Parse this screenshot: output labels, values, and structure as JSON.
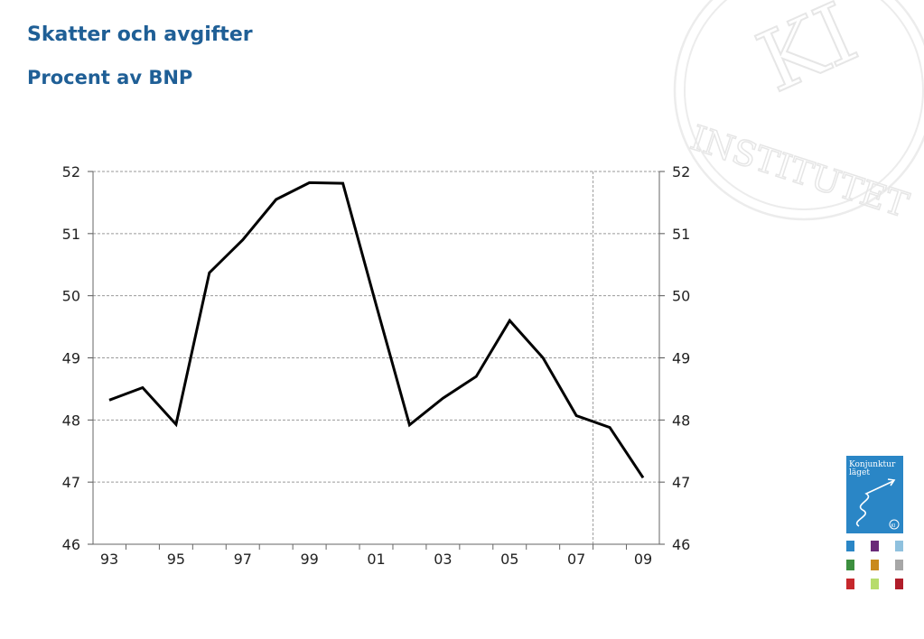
{
  "page": {
    "title": "Skatter och avgifter",
    "subtitle": "Procent av BNP"
  },
  "seal": {
    "icon": "ki-institutet-seal-icon",
    "text_top": "KI",
    "text_ring": "INSTITUTET"
  },
  "report_cover": {
    "icon": "konjunkturlaget-report-cover-icon",
    "title": "Konjunktur läget",
    "badge": "KI",
    "color": "#2a86c6"
  },
  "edition_thumbnails": {
    "icon": "report-edition-thumbnails-icon",
    "colors": [
      "#2a86c6",
      "#6a2a78",
      "#8fc1de",
      "#3d8f3f",
      "#c98a1c",
      "#a7a7a7",
      "#c6282c",
      "#b7dc6c",
      "#b01d2a"
    ]
  },
  "chart_data": {
    "type": "line",
    "title": "",
    "xlabel": "",
    "ylabel": "",
    "x": [
      1993,
      1994,
      1995,
      1996,
      1997,
      1998,
      1999,
      2000,
      2001,
      2002,
      2003,
      2004,
      2005,
      2006,
      2007,
      2008,
      2009
    ],
    "x_tick_labels": [
      "93",
      "95",
      "97",
      "99",
      "01",
      "03",
      "05",
      "07",
      "09"
    ],
    "x_tick_values": [
      1993,
      1995,
      1997,
      1999,
      2001,
      2003,
      2005,
      2007,
      2009
    ],
    "ylim": [
      46,
      52
    ],
    "y_ticks": [
      46,
      47,
      48,
      49,
      50,
      51,
      52
    ],
    "secondary_y_axis": true,
    "grid": "dashed",
    "forecast_divider_between": [
      2007,
      2008
    ],
    "series": [
      {
        "values": [
          48.32,
          48.52,
          47.93,
          50.37,
          50.9,
          51.55,
          51.82,
          51.81,
          49.85,
          47.92,
          48.35,
          48.7,
          49.6,
          49.0,
          48.07,
          47.88,
          47.07
        ],
        "color": "#000000"
      }
    ]
  }
}
